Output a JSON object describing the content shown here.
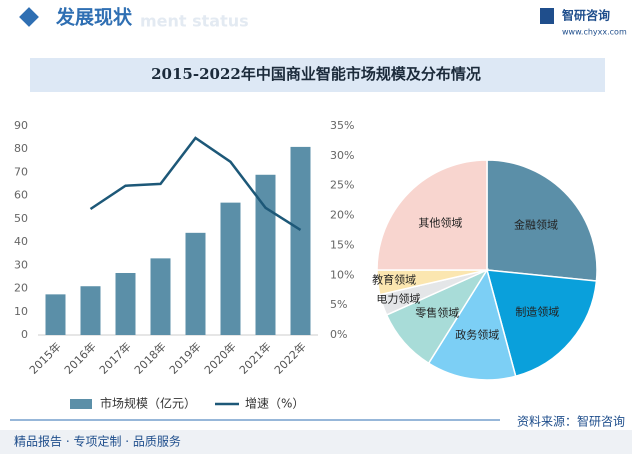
{
  "header": {
    "title": "发展现状",
    "subtitle": "ment status",
    "logo": "智研咨询",
    "url": "www.chyxx.com"
  },
  "title": "2015-2022年中国商业智能市场规模及分布情况",
  "chart_data": [
    {
      "type": "bar",
      "categories": [
        "2015年",
        "2016年",
        "2017年",
        "2018年",
        "2019年",
        "2020年",
        "2021年",
        "2022年"
      ],
      "series": [
        {
          "name": "市场规模（亿元）",
          "type": "bar",
          "color": "#5b8fa8",
          "values": [
            17.5,
            21,
            26.7,
            33,
            44,
            57,
            69,
            81
          ]
        },
        {
          "name": "增速（%）",
          "type": "line",
          "axis": "y2",
          "color": "#1d5878",
          "values": [
            null,
            21.1,
            25,
            25.3,
            33,
            29,
            21.3,
            17.6
          ]
        }
      ],
      "ylim": [
        0,
        90
      ],
      "yticks": [
        0,
        10,
        20,
        30,
        40,
        50,
        60,
        70,
        80,
        90
      ],
      "y2lim": [
        0,
        35
      ],
      "y2ticks": [
        {
          "value": 0,
          "label": "0%"
        },
        {
          "value": 5,
          "label": "5%"
        },
        {
          "value": 10,
          "label": "10%"
        },
        {
          "value": 15,
          "label": "15%"
        },
        {
          "value": 20,
          "label": "20%"
        },
        {
          "value": 25,
          "label": "25%"
        },
        {
          "value": 30,
          "label": "30%"
        },
        {
          "value": 35,
          "label": "35%"
        }
      ]
    },
    {
      "type": "pie",
      "categories": [
        "金融领域",
        "制造领域",
        "政务领域",
        "零售领域",
        "电力领域",
        "教育领域",
        "其他领域"
      ],
      "values": [
        26.6,
        19.2,
        13.1,
        9.4,
        3.1,
        3.6,
        25
      ],
      "colors": [
        "#5b8fa8",
        "#0aa0db",
        "#7ccff5",
        "#a8dcd8",
        "#e4e6e8",
        "#fbe6b0",
        "#f8d5cf"
      ]
    }
  ],
  "footer": {
    "source": "资料来源：智研咨询",
    "slogan": "精品报告 · 专项定制 · 品质服务"
  }
}
